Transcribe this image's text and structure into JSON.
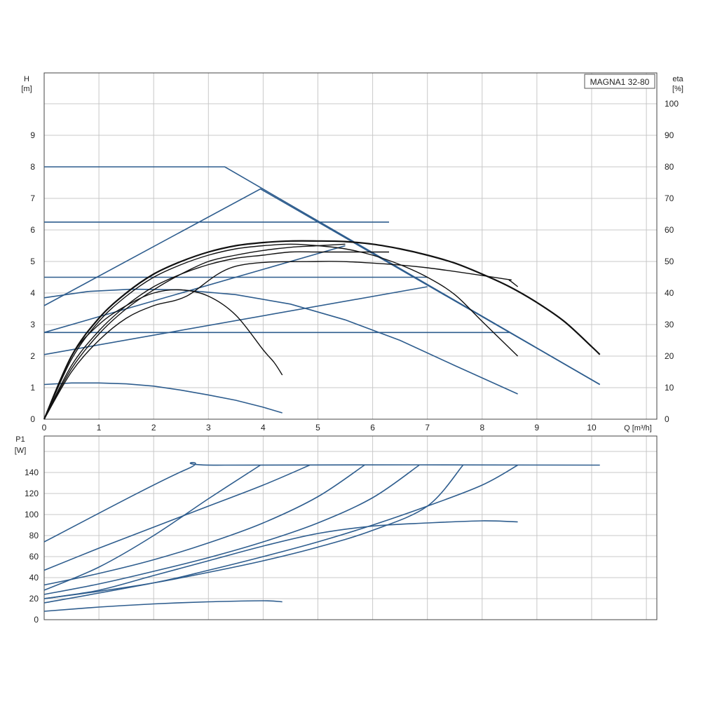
{
  "model_label": "MAGNA1 32-80",
  "chart_data": [
    {
      "type": "line",
      "xlabel": "Q [m³/h]",
      "ylabel_left": [
        "H",
        "[m]"
      ],
      "ylabel_right": [
        "eta",
        "[%]"
      ],
      "xlim": [
        0,
        11.2
      ],
      "ylim_left": [
        0,
        11
      ],
      "ylim_right": [
        0,
        110
      ],
      "x_ticks": [
        0,
        1,
        2,
        3,
        4,
        5,
        6,
        7,
        8,
        9,
        10
      ],
      "y_ticks_left": [
        0,
        1,
        2,
        3,
        4,
        5,
        6,
        7,
        8,
        9
      ],
      "y_ticks_right": [
        0,
        10,
        20,
        30,
        40,
        50,
        60,
        70,
        80,
        90,
        100
      ],
      "grid": true,
      "colors": {
        "head": "#2e5d8e",
        "efficiency": "#111111"
      },
      "head_curves": [
        {
          "x": [
            0,
            3.3,
            10.15
          ],
          "y": [
            8.0,
            8.0,
            1.1
          ]
        },
        {
          "x": [
            0,
            3.95,
            10.15
          ],
          "y": [
            3.6,
            7.3,
            1.1
          ]
        },
        {
          "x": [
            0,
            6.3
          ],
          "y": [
            6.25,
            6.25
          ]
        },
        {
          "x": [
            0,
            5.5
          ],
          "y": [
            2.75,
            5.5
          ]
        },
        {
          "x": [
            0,
            7.0
          ],
          "y": [
            4.5,
            4.5
          ]
        },
        {
          "x": [
            0,
            7.0
          ],
          "y": [
            2.05,
            4.2
          ]
        },
        {
          "x": [
            0,
            8.5
          ],
          "y": [
            2.75,
            2.75
          ]
        },
        {
          "x": [
            0,
            0.8,
            1.6,
            2.5,
            3.5,
            4.5,
            5.5,
            6.5,
            7.5,
            8.65
          ],
          "y": [
            3.85,
            4.05,
            4.12,
            4.1,
            3.95,
            3.65,
            3.15,
            2.5,
            1.7,
            0.8
          ]
        },
        {
          "x": [
            0,
            0.5,
            1.0,
            1.5,
            2.0,
            2.5,
            3.0,
            3.5,
            4.0,
            4.35
          ],
          "y": [
            1.1,
            1.15,
            1.15,
            1.12,
            1.05,
            0.92,
            0.77,
            0.6,
            0.38,
            0.2
          ]
        }
      ],
      "efficiency_curves": [
        {
          "x": [
            0,
            0.5,
            1,
            1.5,
            2,
            2.5,
            3,
            3.5,
            4,
            4.5,
            5,
            5.5,
            6,
            6.5,
            7,
            7.5,
            8,
            8.5,
            9,
            9.5,
            10,
            10.15
          ],
          "y": [
            0,
            20,
            32,
            40,
            46,
            50,
            53,
            55,
            56,
            56.5,
            56.5,
            56.3,
            55.5,
            54,
            52,
            49.5,
            46,
            42,
            37,
            31,
            23,
            20.5
          ]
        },
        {
          "x": [
            0,
            0.5,
            1,
            1.5,
            2,
            2.5,
            3,
            3.5,
            4,
            4.5,
            5,
            5.5,
            6,
            6.5,
            7,
            7.5,
            8,
            8.65
          ],
          "y": [
            0,
            19,
            31,
            39,
            45,
            49,
            52,
            54,
            55,
            55.5,
            55,
            54,
            52,
            49,
            45,
            39.5,
            31,
            20
          ]
        },
        {
          "x": [
            0,
            0.5,
            1,
            1.5,
            2,
            2.5,
            3,
            3.5,
            4,
            4.2,
            4.35
          ],
          "y": [
            0,
            20,
            30,
            36,
            40,
            41,
            39,
            33,
            22,
            18,
            14
          ]
        },
        {
          "x": [
            0,
            0.5,
            1,
            1.5,
            2,
            2.6,
            3.5,
            5,
            6,
            7,
            8.4,
            8.5,
            8.65
          ],
          "y": [
            0,
            15,
            25,
            32,
            36,
            39,
            48.5,
            50,
            49.5,
            48,
            44.5,
            44,
            42
          ]
        },
        {
          "x": [
            0,
            0.5,
            1,
            1.5,
            2,
            2.5,
            3,
            3.5,
            4,
            4.5,
            5,
            5.5,
            6,
            6.3
          ],
          "y": [
            0,
            17,
            28,
            36,
            42,
            46,
            49,
            51,
            52,
            53,
            53,
            53,
            53,
            53
          ]
        },
        {
          "x": [
            0,
            0.5,
            1,
            1.5,
            2,
            2.5,
            3,
            3.5,
            4,
            4.5,
            5,
            5.5
          ],
          "y": [
            0,
            16,
            27,
            35,
            41,
            46,
            50,
            52,
            53.5,
            54.5,
            55,
            55.5
          ]
        }
      ]
    },
    {
      "type": "line",
      "ylabel_left": [
        "P1",
        "[W]"
      ],
      "xlim": [
        0,
        11.2
      ],
      "ylim": [
        0,
        160
      ],
      "y_ticks": [
        0,
        20,
        40,
        60,
        80,
        100,
        120,
        140
      ],
      "x_ticks": [
        0,
        1,
        2,
        3,
        4,
        5,
        6,
        7,
        8,
        9,
        10
      ],
      "grid": true,
      "colors": {
        "power": "#2e5d8e"
      },
      "power_curves": [
        {
          "x": [
            0,
            2.6,
            3.3,
            10.15
          ],
          "y": [
            74,
            143,
            147,
            147
          ]
        },
        {
          "x": [
            0,
            1,
            2,
            3,
            3.95
          ],
          "y": [
            28,
            50,
            80,
            115,
            147
          ]
        },
        {
          "x": [
            0,
            1,
            2,
            3,
            4,
            4.85
          ],
          "y": [
            47,
            68,
            88,
            108,
            128,
            147
          ]
        },
        {
          "x": [
            0,
            1,
            2,
            3,
            4,
            5,
            5.85
          ],
          "y": [
            33,
            44,
            57,
            73,
            92,
            117,
            147
          ]
        },
        {
          "x": [
            0,
            1,
            2,
            3,
            4,
            5,
            6,
            6.85
          ],
          "y": [
            24,
            34,
            46,
            59,
            74,
            92,
            116,
            147
          ]
        },
        {
          "x": [
            0,
            1,
            2,
            3,
            4,
            5,
            6,
            7,
            7.65
          ],
          "y": [
            20,
            27,
            35,
            45,
            56,
            69,
            85,
            108,
            147
          ]
        },
        {
          "x": [
            0,
            2,
            3,
            4,
            5,
            6,
            7,
            8,
            8.65
          ],
          "y": [
            16,
            35,
            47,
            60,
            74,
            90,
            108,
            128,
            147
          ]
        },
        {
          "x": [
            0,
            1,
            2,
            3,
            4,
            5,
            6,
            7,
            8,
            8.65
          ],
          "y": [
            20,
            28,
            42,
            56,
            70,
            82,
            89,
            92,
            94,
            93
          ]
        },
        {
          "x": [
            0,
            1,
            2,
            3,
            4,
            4.35
          ],
          "y": [
            8,
            12,
            15,
            17,
            18,
            17
          ]
        }
      ]
    }
  ]
}
